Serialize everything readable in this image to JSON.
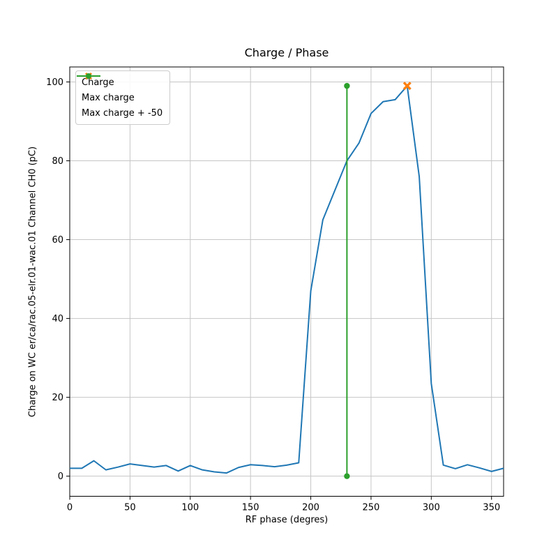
{
  "chart_data": {
    "type": "line",
    "title": "Charge / Phase",
    "xlabel": "RF phase (degres)",
    "ylabel": "Charge on WC er/ca/rac.05-elr.01-wac.01 Channel CH0 (pC)",
    "xlim": [
      0,
      360
    ],
    "ylim": [
      -5.1,
      103.8
    ],
    "xticks": [
      0,
      50,
      100,
      150,
      200,
      250,
      300,
      350
    ],
    "yticks": [
      0,
      20,
      40,
      60,
      80,
      100
    ],
    "grid": true,
    "legend_position": "upper left",
    "colors": {
      "grid": "#c6c6c6",
      "spine": "#000000",
      "background": "#ffffff",
      "charge": "#1f77b4",
      "max_charge": "#ff7f0e",
      "max_charge_minus_50": "#2ca02c"
    },
    "series": [
      {
        "name": "Charge",
        "color": "#1f77b4",
        "marker": "none",
        "x": [
          0,
          10,
          20,
          30,
          40,
          50,
          60,
          70,
          80,
          90,
          100,
          110,
          120,
          130,
          140,
          150,
          160,
          170,
          180,
          190,
          200,
          210,
          220,
          230,
          240,
          250,
          260,
          270,
          280,
          290,
          300,
          310,
          320,
          330,
          340,
          350,
          360
        ],
        "y": [
          2.0,
          2.0,
          3.9,
          1.6,
          2.3,
          3.1,
          2.7,
          2.3,
          2.7,
          1.3,
          2.7,
          1.6,
          1.1,
          0.8,
          2.2,
          2.9,
          2.7,
          2.4,
          2.8,
          3.4,
          47.0,
          65.0,
          72.5,
          80.0,
          84.5,
          92.0,
          95.0,
          95.5,
          99.0,
          76.0,
          23.5,
          2.8,
          1.9,
          2.9,
          2.1,
          1.2,
          2.0
        ]
      },
      {
        "name": "Max charge",
        "color": "#ff7f0e",
        "marker": "X",
        "x": [
          280
        ],
        "y": [
          99.0
        ]
      },
      {
        "name": "Max charge + -50",
        "color": "#2ca02c",
        "marker": "o",
        "x": [
          230,
          230
        ],
        "y": [
          0.0,
          99.0
        ]
      }
    ]
  }
}
